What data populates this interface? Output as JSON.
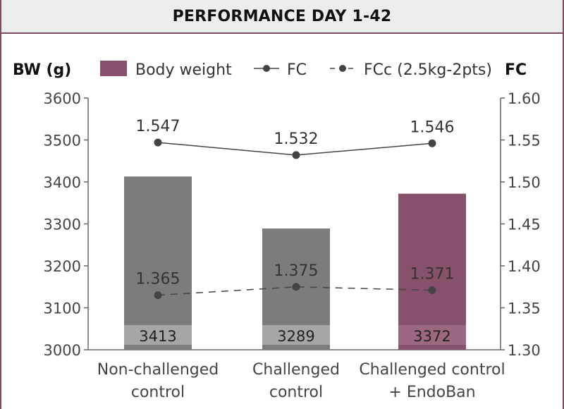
{
  "header": {
    "title": "PERFORMANCE DAY 1-42"
  },
  "colors": {
    "bar_gray": "#7c7c7c",
    "bar_band_gray": "#a6a6a6",
    "bar_accent": "#87506b",
    "bar_band_accent": "#9c6780",
    "line": "#444444",
    "frame": "#7d4a63",
    "header_bg": "#ededed"
  },
  "legend": {
    "body_weight": "Body weight",
    "fc": "FC",
    "fcc": "FCc (2.5kg-2pts)"
  },
  "chart_data": {
    "type": "bar",
    "title": "PERFORMANCE DAY 1-42",
    "categories": [
      [
        "Non-challenged",
        "control"
      ],
      [
        "Challenged",
        "control"
      ],
      [
        "Challenged control",
        "+ EndoBan"
      ]
    ],
    "series": [
      {
        "name": "Body weight",
        "kind": "bar",
        "axis": "left",
        "values": [
          3413,
          3289,
          3372
        ],
        "colors": [
          "gray",
          "gray",
          "accent"
        ]
      },
      {
        "name": "FC",
        "kind": "line",
        "style": "solid",
        "axis": "right",
        "values": [
          1.547,
          1.532,
          1.546
        ],
        "labels": [
          "1.547",
          "1.532",
          "1.546"
        ]
      },
      {
        "name": "FCc (2.5kg-2pts)",
        "kind": "line",
        "style": "dashed",
        "axis": "right",
        "values": [
          1.365,
          1.375,
          1.371
        ],
        "labels": [
          "1.365",
          "1.375",
          "1.371"
        ]
      }
    ],
    "y_left": {
      "label": "BW (g)",
      "range": [
        3000,
        3600
      ],
      "ticks": [
        "3000",
        "3100",
        "3200",
        "3300",
        "3400",
        "3500",
        "3600"
      ]
    },
    "y_right": {
      "label": "FC",
      "range": [
        1.3,
        1.6
      ],
      "ticks": [
        "1.30",
        "1.35",
        "1.40",
        "1.45",
        "1.50",
        "1.55",
        "1.60"
      ]
    },
    "grid": false,
    "legend_position": "top"
  }
}
